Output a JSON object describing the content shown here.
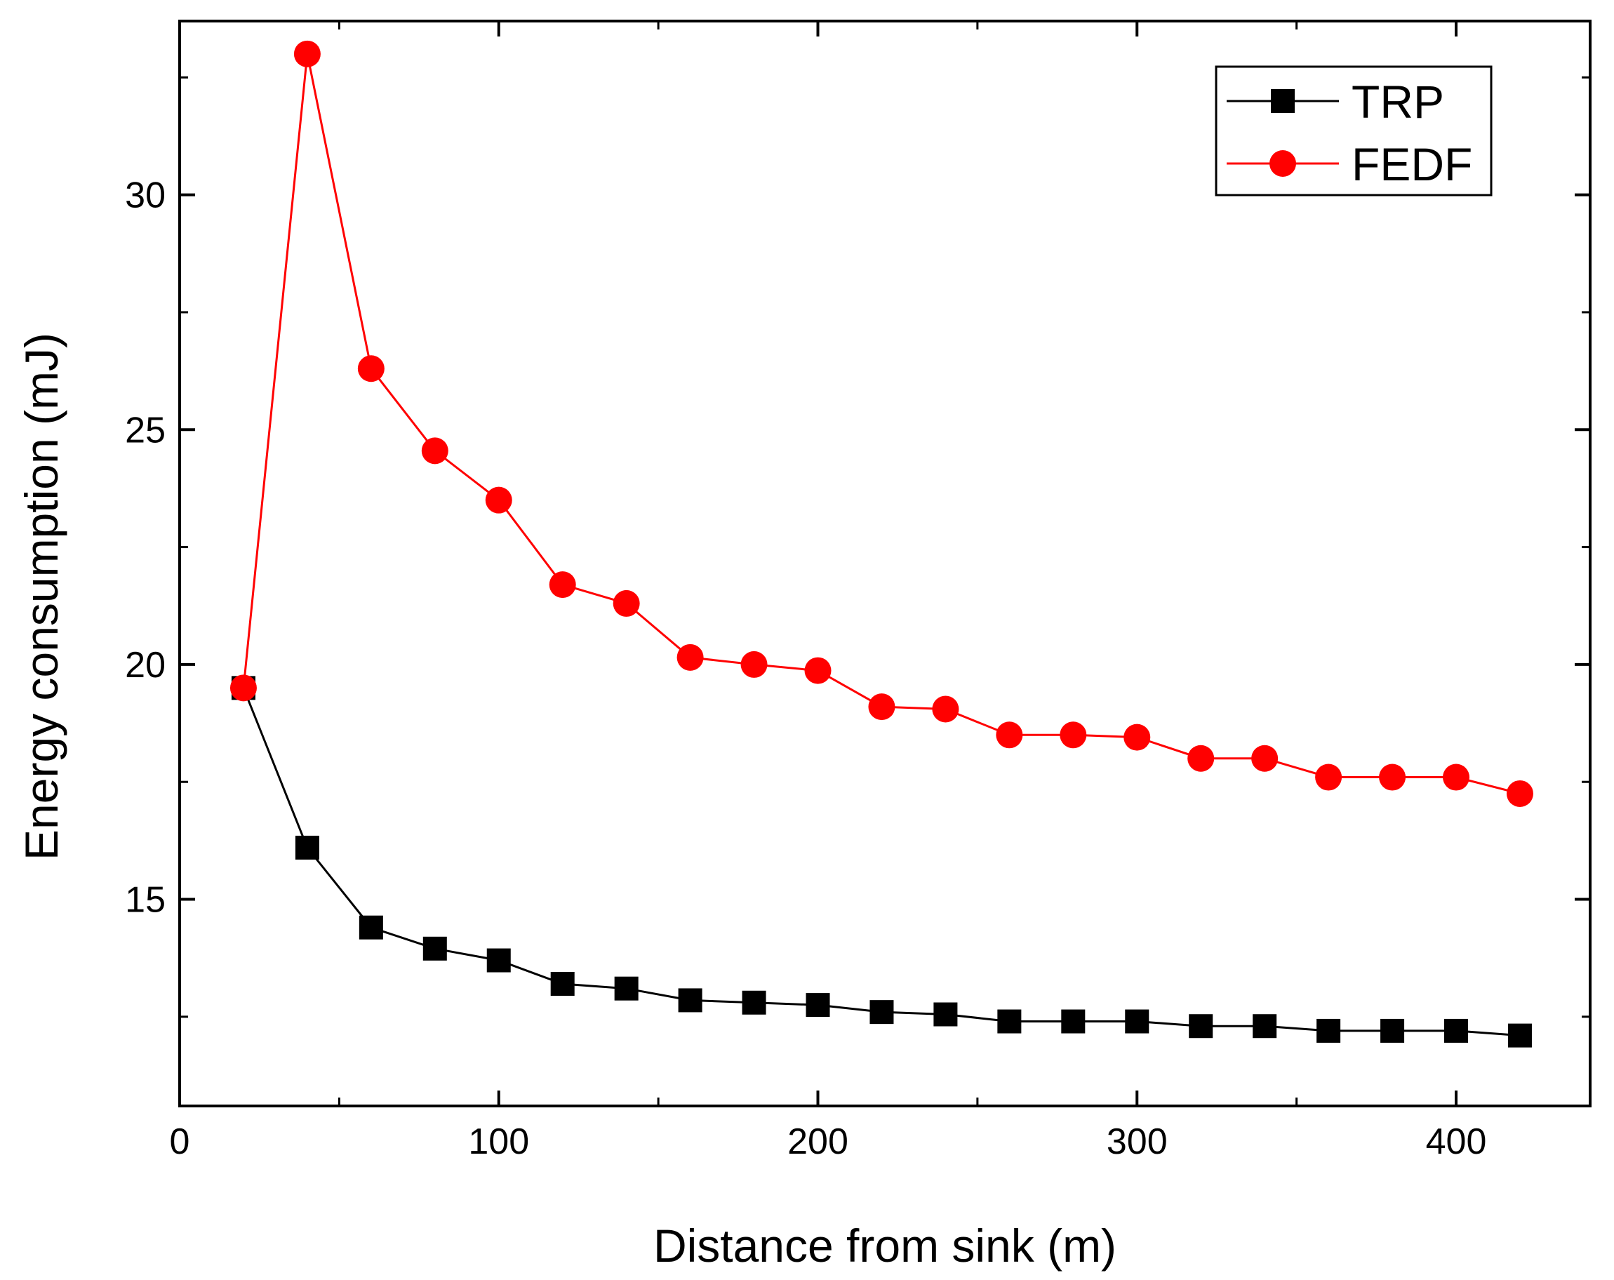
{
  "chart_data": {
    "type": "line",
    "title": "",
    "xlabel": "Distance from sink (m)",
    "ylabel": "Energy consumption (mJ)",
    "xlim": [
      0,
      442
    ],
    "ylim": [
      10.6,
      33.7
    ],
    "xticks": [
      0,
      100,
      200,
      300,
      400
    ],
    "yticks": [
      15,
      20,
      25,
      30
    ],
    "x": [
      20,
      40,
      60,
      80,
      100,
      120,
      140,
      160,
      180,
      200,
      220,
      240,
      260,
      280,
      300,
      320,
      340,
      360,
      380,
      400,
      420
    ],
    "series": [
      {
        "name": "TRP",
        "color": "#000000",
        "marker": "square",
        "values": [
          19.5,
          16.1,
          14.4,
          13.95,
          13.7,
          13.2,
          13.1,
          12.85,
          12.8,
          12.75,
          12.6,
          12.55,
          12.4,
          12.4,
          12.4,
          12.3,
          12.3,
          12.2,
          12.2,
          12.2,
          12.1
        ]
      },
      {
        "name": "FEDF",
        "color": "#ff0000",
        "marker": "circle",
        "values": [
          19.5,
          33.0,
          26.3,
          24.55,
          23.5,
          21.7,
          21.3,
          20.15,
          20.0,
          19.87,
          19.1,
          19.05,
          18.5,
          18.5,
          18.45,
          18.0,
          18.0,
          17.6,
          17.6,
          17.6,
          17.25
        ]
      }
    ],
    "legend": {
      "position": "top-right",
      "entries": [
        "TRP",
        "FEDF"
      ]
    },
    "grid": false
  }
}
